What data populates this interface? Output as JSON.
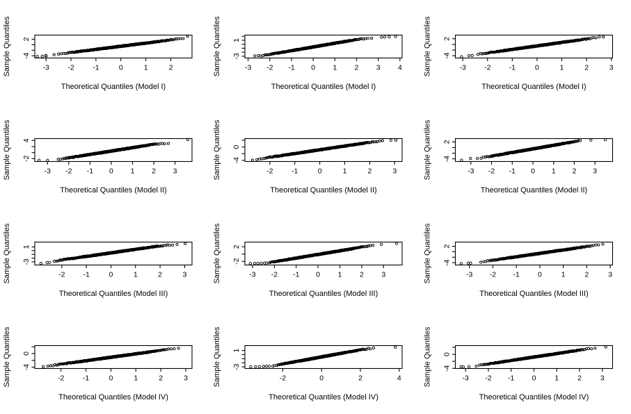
{
  "page": {
    "background": "#ffffff",
    "foreground": "#000000",
    "description": "Grid of 12 normal Q-Q plots (4 rows x 3 columns), R base graphics style"
  },
  "chart_data": [
    {
      "type": "scatter",
      "row": 1,
      "col": 1,
      "xlabel": "Theoretical Quantiles (Model I)",
      "ylabel": "Sample Quantiles",
      "xlim": [
        -3.45,
        2.85
      ],
      "ylim": [
        -4.8,
        3.5
      ],
      "x_ticks": [
        -3,
        -2,
        -1,
        0,
        1,
        2
      ],
      "y_ticks": [
        -4,
        -2,
        0,
        2
      ],
      "y_tick_labels": [
        "-4",
        "",
        "",
        "2"
      ],
      "grid": false,
      "n_points": 400,
      "seed": 11,
      "backbone": [
        [
          -3.35,
          -4.2
        ],
        [
          -2.55,
          -3.45
        ],
        [
          2.2,
          1.95
        ],
        [
          2.45,
          2.2
        ],
        [
          2.7,
          2.95
        ]
      ],
      "outliers": [
        [
          -3.35,
          -4.25
        ],
        [
          -3.15,
          -4.15
        ],
        [
          -3.0,
          -4.05
        ]
      ]
    },
    {
      "type": "scatter",
      "row": 1,
      "col": 2,
      "xlabel": "Theoretical Quantiles (Model I)",
      "ylabel": "Sample Quantiles",
      "xlim": [
        -3.15,
        4.1
      ],
      "ylim": [
        -3.45,
        2.3
      ],
      "x_ticks": [
        -3,
        -2,
        -1,
        0,
        1,
        2,
        3,
        4
      ],
      "y_ticks": [
        -3,
        -2,
        -1,
        0,
        1,
        2
      ],
      "y_tick_labels": [
        "-3",
        "",
        "",
        "",
        "1",
        ""
      ],
      "grid": false,
      "n_points": 420,
      "seed": 22,
      "backbone": [
        [
          -2.9,
          -3.05
        ],
        [
          -2.25,
          -2.8
        ],
        [
          2.0,
          1.2
        ],
        [
          2.6,
          1.55
        ],
        [
          3.0,
          1.7
        ]
      ],
      "outliers": [
        [
          3.15,
          1.75
        ],
        [
          3.3,
          1.8
        ],
        [
          3.5,
          1.85
        ],
        [
          3.8,
          1.95
        ]
      ]
    },
    {
      "type": "scatter",
      "row": 1,
      "col": 3,
      "xlabel": "Theoretical Quantiles (Model I)",
      "ylabel": "Sample Quantiles",
      "xlim": [
        -3.3,
        3.05
      ],
      "ylim": [
        -4.8,
        3.3
      ],
      "x_ticks": [
        -3,
        -2,
        -1,
        0,
        1,
        2,
        3
      ],
      "y_ticks": [
        -4,
        -2,
        0,
        2
      ],
      "y_tick_labels": [
        "-4",
        "",
        "",
        "2"
      ],
      "grid": false,
      "n_points": 400,
      "seed": 33,
      "backbone": [
        [
          -2.45,
          -3.55
        ],
        [
          2.1,
          2.05
        ],
        [
          2.8,
          2.9
        ]
      ],
      "outliers": [
        [
          -3.05,
          -4.35
        ],
        [
          -2.75,
          -3.95
        ],
        [
          -2.62,
          -3.9
        ]
      ]
    },
    {
      "type": "scatter",
      "row": 2,
      "col": 1,
      "xlabel": "Theoretical Quantiles (Model II)",
      "ylabel": "Sample Quantiles",
      "xlim": [
        -3.6,
        3.8
      ],
      "ylim": [
        -2.95,
        4.65
      ],
      "x_ticks": [
        -3,
        -2,
        -1,
        0,
        1,
        2,
        3
      ],
      "y_ticks": [
        -2,
        0,
        2,
        4
      ],
      "y_tick_labels": [
        "-2",
        "",
        "",
        "4"
      ],
      "grid": false,
      "n_points": 400,
      "seed": 44,
      "backbone": [
        [
          -2.55,
          -2.35
        ],
        [
          2.0,
          2.75
        ],
        [
          2.65,
          3.05
        ],
        [
          3.0,
          3.3
        ]
      ],
      "outliers": [
        [
          -3.4,
          -2.55
        ],
        [
          -3.0,
          -2.55
        ],
        [
          3.6,
          4.35
        ]
      ]
    },
    {
      "type": "scatter",
      "row": 2,
      "col": 2,
      "xlabel": "Theoretical Quantiles (Model II)",
      "ylabel": "Sample Quantiles",
      "xlim": [
        -3.0,
        3.3
      ],
      "ylim": [
        -4.35,
        2.5
      ],
      "x_ticks": [
        -2,
        -1,
        0,
        1,
        2,
        3
      ],
      "y_ticks": [
        -4,
        -2,
        0,
        2
      ],
      "y_tick_labels": [
        "-4",
        "",
        "0",
        ""
      ],
      "grid": false,
      "n_points": 420,
      "seed": 55,
      "backbone": [
        [
          -2.75,
          -3.9
        ],
        [
          -2.25,
          -3.55
        ],
        [
          -2.05,
          -3.15
        ],
        [
          2.2,
          1.6
        ],
        [
          2.6,
          1.85
        ]
      ],
      "outliers": [
        [
          2.85,
          2.0
        ],
        [
          3.05,
          2.05
        ]
      ]
    },
    {
      "type": "scatter",
      "row": 2,
      "col": 3,
      "xlabel": "Theoretical Quantiles (Model II)",
      "ylabel": "Sample Quantiles",
      "xlim": [
        -3.75,
        3.85
      ],
      "ylim": [
        -4.95,
        3.2
      ],
      "x_ticks": [
        -3,
        -2,
        -1,
        0,
        1,
        2,
        3
      ],
      "y_ticks": [
        -4,
        -2,
        0,
        2
      ],
      "y_tick_labels": [
        "-4",
        "",
        "",
        "2"
      ],
      "grid": false,
      "n_points": 400,
      "seed": 66,
      "backbone": [
        [
          -3.05,
          -4.05
        ],
        [
          -2.55,
          -3.75
        ],
        [
          2.35,
          2.55
        ]
      ],
      "outliers": [
        [
          -3.45,
          -4.5
        ],
        [
          2.8,
          2.65
        ],
        [
          3.5,
          2.8
        ]
      ]
    },
    {
      "type": "scatter",
      "row": 3,
      "col": 1,
      "xlabel": "Theoretical Quantiles (Model III)",
      "ylabel": "Sample Quantiles",
      "xlim": [
        -3.1,
        3.3
      ],
      "ylim": [
        -3.85,
        2.3
      ],
      "x_ticks": [
        -2,
        -1,
        0,
        1,
        2,
        3
      ],
      "y_ticks": [
        -3,
        -2,
        -1,
        0,
        1
      ],
      "y_tick_labels": [
        "-3",
        "",
        "",
        "",
        "1"
      ],
      "grid": false,
      "n_points": 420,
      "seed": 77,
      "backbone": [
        [
          -2.35,
          -3.0
        ],
        [
          -2.1,
          -2.6
        ],
        [
          2.0,
          1.3
        ],
        [
          2.6,
          1.6
        ],
        [
          3.05,
          1.8
        ]
      ],
      "outliers": [
        [
          -2.85,
          -3.4
        ],
        [
          -2.6,
          -3.2
        ],
        [
          -2.5,
          -3.15
        ]
      ]
    },
    {
      "type": "scatter",
      "row": 3,
      "col": 2,
      "xlabel": "Theoretical Quantiles (Model III)",
      "ylabel": "Sample Quantiles",
      "xlim": [
        -3.35,
        3.85
      ],
      "ylim": [
        -3.0,
        3.3
      ],
      "x_ticks": [
        -3,
        -2,
        -1,
        0,
        1,
        2,
        3
      ],
      "y_ticks": [
        -2,
        0,
        2
      ],
      "y_tick_labels": [
        "-2",
        "",
        "2"
      ],
      "grid": false,
      "n_points": 420,
      "seed": 88,
      "backbone": [
        [
          -2.25,
          -2.35
        ],
        [
          2.55,
          2.45
        ]
      ],
      "outliers": [
        [
          -3.1,
          -2.6
        ],
        [
          -2.9,
          -2.55
        ],
        [
          -2.75,
          -2.55
        ],
        [
          -2.6,
          -2.5
        ],
        [
          -2.45,
          -2.45
        ],
        [
          -2.35,
          -2.45
        ],
        [
          2.9,
          2.65
        ],
        [
          3.6,
          2.9
        ]
      ]
    },
    {
      "type": "scatter",
      "row": 3,
      "col": 3,
      "xlabel": "Theoretical Quantiles (Model III)",
      "ylabel": "Sample Quantiles",
      "xlim": [
        -3.6,
        3.1
      ],
      "ylim": [
        -4.85,
        3.55
      ],
      "x_ticks": [
        -3,
        -2,
        -1,
        0,
        1,
        2,
        3
      ],
      "y_ticks": [
        -4,
        -2,
        0,
        2
      ],
      "y_tick_labels": [
        "-4",
        "",
        "",
        "2"
      ],
      "grid": false,
      "n_points": 400,
      "seed": 99,
      "backbone": [
        [
          -2.6,
          -3.85
        ],
        [
          2.15,
          2.1
        ],
        [
          2.5,
          2.6
        ],
        [
          2.8,
          3.1
        ]
      ],
      "outliers": [
        [
          -3.35,
          -4.3
        ],
        [
          -3.05,
          -4.15
        ],
        [
          -2.95,
          -4.15
        ]
      ]
    },
    {
      "type": "scatter",
      "row": 4,
      "col": 1,
      "xlabel": "Theoretical Quantiles (Model IV)",
      "ylabel": "Sample Quantiles",
      "xlim": [
        -3.05,
        3.25
      ],
      "ylim": [
        -4.4,
        2.35
      ],
      "x_ticks": [
        -2,
        -1,
        0,
        1,
        2,
        3
      ],
      "y_ticks": [
        -4,
        -2,
        0,
        2
      ],
      "y_tick_labels": [
        "-4",
        "",
        "0",
        ""
      ],
      "grid": false,
      "n_points": 430,
      "seed": 101,
      "backbone": [
        [
          -2.8,
          -3.9
        ],
        [
          -2.35,
          -3.5
        ],
        [
          2.55,
          1.5
        ],
        [
          3.0,
          1.9
        ]
      ],
      "outliers": []
    },
    {
      "type": "scatter",
      "row": 4,
      "col": 2,
      "xlabel": "Theoretical Quantiles (Model IV)",
      "ylabel": "Sample Quantiles",
      "xlim": [
        -3.95,
        4.15
      ],
      "ylim": [
        -3.4,
        2.2
      ],
      "x_ticks": [
        -2,
        0,
        2,
        4
      ],
      "y_ticks": [
        -3,
        -2,
        -1,
        0,
        1
      ],
      "y_tick_labels": [
        "-3",
        "",
        "",
        "",
        "1"
      ],
      "grid": false,
      "n_points": 420,
      "seed": 111,
      "backbone": [
        [
          -2.55,
          -2.8
        ],
        [
          -2.05,
          -2.35
        ],
        [
          2.1,
          1.25
        ],
        [
          2.95,
          1.7
        ]
      ],
      "outliers": [
        [
          -3.65,
          -3.0
        ],
        [
          -3.4,
          -2.95
        ],
        [
          -3.2,
          -2.95
        ],
        [
          -3.0,
          -2.9
        ],
        [
          -2.85,
          -2.85
        ],
        [
          -2.7,
          -2.85
        ],
        [
          3.8,
          1.8
        ]
      ]
    },
    {
      "type": "scatter",
      "row": 4,
      "col": 3,
      "xlabel": "Theoretical Quantiles (Model IV)",
      "ylabel": "Sample Quantiles",
      "xlim": [
        -3.45,
        3.45
      ],
      "ylim": [
        -4.05,
        2.5
      ],
      "x_ticks": [
        -3,
        -2,
        -1,
        0,
        1,
        2,
        3
      ],
      "y_ticks": [
        -4,
        -2,
        0,
        2
      ],
      "y_tick_labels": [
        "-4",
        "",
        "0",
        ""
      ],
      "grid": false,
      "n_points": 420,
      "seed": 121,
      "backbone": [
        [
          -2.6,
          -3.35
        ],
        [
          2.3,
          1.5
        ],
        [
          3.0,
          1.85
        ]
      ],
      "outliers": [
        [
          -3.2,
          -3.5
        ],
        [
          -3.1,
          -3.6
        ],
        [
          -2.85,
          -3.5
        ],
        [
          3.15,
          2.1
        ]
      ]
    }
  ]
}
